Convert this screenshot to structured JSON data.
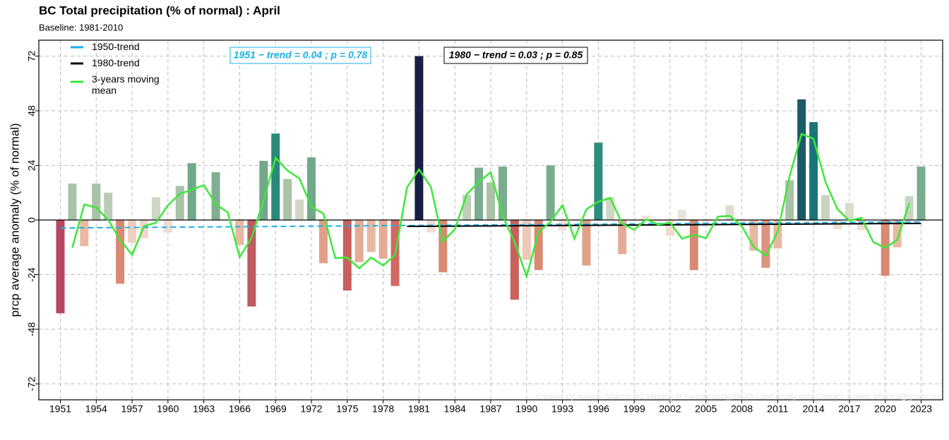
{
  "chart_data": {
    "type": "bar",
    "title": "BC Total precipitation (% of normal) : April",
    "subtitle": "Baseline: 1981-2010",
    "ylabel": "prcp average anomaly (% of normal)",
    "x": [
      1951,
      1952,
      1953,
      1954,
      1955,
      1956,
      1957,
      1958,
      1959,
      1960,
      1961,
      1962,
      1963,
      1964,
      1965,
      1966,
      1967,
      1968,
      1969,
      1970,
      1971,
      1972,
      1973,
      1974,
      1975,
      1976,
      1977,
      1978,
      1979,
      1980,
      1981,
      1982,
      1983,
      1984,
      1985,
      1986,
      1987,
      1988,
      1989,
      1990,
      1991,
      1992,
      1993,
      1994,
      1995,
      1996,
      1997,
      1998,
      1999,
      2000,
      2001,
      2002,
      2003,
      2004,
      2005,
      2006,
      2007,
      2008,
      2009,
      2010,
      2011,
      2012,
      2013,
      2014,
      2015,
      2016,
      2017,
      2018,
      2019,
      2020,
      2021,
      2022,
      2023
    ],
    "values": [
      -41,
      16,
      -11.5,
      16,
      12,
      -28,
      -10,
      -8,
      10,
      -5.5,
      15,
      25,
      0,
      21,
      0,
      -11,
      -38,
      26,
      38,
      18,
      9,
      27.5,
      -19,
      0,
      -31,
      -18.5,
      -14,
      -17,
      -29,
      0,
      72,
      -5.5,
      -23,
      0,
      11,
      23,
      16.5,
      23.5,
      -35,
      -17.5,
      -22,
      24,
      -4.5,
      0,
      -20,
      34,
      10,
      -15,
      0,
      2,
      -1,
      -7,
      4.5,
      -22,
      -2,
      0,
      6.5,
      -1,
      -13.5,
      -21,
      -12.5,
      17.5,
      53,
      43,
      11,
      -4,
      7.5,
      -4.5,
      0,
      -24.5,
      -12,
      10.5,
      23.5
    ],
    "colors": [
      "#b8465e",
      "#a9c2a8",
      "#e8b8a2",
      "#a9c2a8",
      "#b9cbb5",
      "#d98a72",
      "#efd0c0",
      "#efd6c8",
      "#d0d6c4",
      "#f0dcd0",
      "#a9c2a8",
      "#72a88a",
      "#e0e0d8",
      "#80ae90",
      "#e0e0d8",
      "#e8b8a2",
      "#c05a60",
      "#72a88a",
      "#2a8a78",
      "#a9c2a8",
      "#d0d6c4",
      "#72a88a",
      "#e0a088",
      "#e0e0d8",
      "#c8605c",
      "#e4ac96",
      "#e8b8a2",
      "#e4ac96",
      "#d06a62",
      "#e0e0d8",
      "#172044",
      "#f0dcd0",
      "#d98a72",
      "#e0e0d8",
      "#c0cfb9",
      "#7aac8e",
      "#a9c2a8",
      "#7aac8e",
      "#c8605c",
      "#ecc8b8",
      "#d98a72",
      "#7aac8e",
      "#f0dcd0",
      "#e0e0d8",
      "#e0a088",
      "#2e8c7c",
      "#d0d6c4",
      "#e4ac96",
      "#e0e0d8",
      "#ece6dc",
      "#f3e4dc",
      "#f0dcd0",
      "#e8e4da",
      "#d98a72",
      "#f3e4dc",
      "#e0e0d8",
      "#e0ddd0",
      "#f3e4dc",
      "#e8b8a2",
      "#dc9480",
      "#e8b8a2",
      "#a9c2a8",
      "#1c5a66",
      "#1a7478",
      "#c8d4c0",
      "#f0dcd0",
      "#dcdcc8",
      "#f0dcd0",
      "#e0e0d8",
      "#d98a72",
      "#e8b8a2",
      "#c8d4c0",
      "#7aac8e"
    ],
    "series": [
      {
        "name": "1950-trend",
        "color": "#1ab0e8",
        "dashed": true,
        "x": [
          1951,
          2023
        ],
        "values": [
          -3.5,
          -0.8
        ]
      },
      {
        "name": "1980-trend",
        "color": "#000000",
        "dashed": false,
        "x": [
          1980,
          2023
        ],
        "values": [
          -2.8,
          -1.5
        ]
      },
      {
        "name": "3-years moving mean",
        "color": "#3de83a",
        "dashed": false,
        "values": [
          null,
          -12.2,
          6.8,
          5.5,
          0,
          -8.7,
          -15.3,
          -2.7,
          -1.2,
          6.5,
          11.5,
          13.3,
          15.3,
          7,
          3.3,
          -16.3,
          -7.7,
          8.7,
          27.3,
          21.7,
          18.2,
          5.8,
          2.8,
          -16.7,
          -16.5,
          -21.2,
          -16.5,
          -20,
          -15.3,
          14.3,
          22.2,
          14.5,
          -9.5,
          -4,
          11.3,
          16.8,
          21,
          1.7,
          -9.7,
          -24.8,
          -5.2,
          -0.8,
          6.5,
          -8.2,
          4.7,
          8,
          9.7,
          -1.7,
          -4.3,
          0.3,
          -2,
          -1.2,
          -8.2,
          -6.5,
          -8,
          1.5,
          1.8,
          -2.7,
          -11.8,
          -15.7,
          -5.3,
          19.3,
          37.8,
          35.7,
          16.7,
          4.8,
          -0.3,
          1,
          -9.7,
          -12.2,
          -8.7,
          7.3,
          null
        ]
      }
    ],
    "annotations": [
      {
        "text": "1951 − trend = 0.04 ; p = 0.78",
        "color": "#1ab0e8"
      },
      {
        "text": "1980 − trend = 0.03 ; p = 0.85",
        "color": "#000000"
      }
    ],
    "credit": "Created by: Aseem Sharma BC Ministry of Forests using ERA5-Land hourly data Contact: Aseem.Sharma@gov.bc.ca",
    "xlim": [
      1949.2,
      2024.8
    ],
    "ylim": [
      -79,
      79
    ],
    "xticks": [
      1951,
      1954,
      1957,
      1960,
      1963,
      1966,
      1969,
      1972,
      1975,
      1978,
      1981,
      1984,
      1987,
      1990,
      1993,
      1996,
      1999,
      2002,
      2005,
      2008,
      2011,
      2014,
      2017,
      2020,
      2023
    ],
    "yticks": [
      -72,
      -48,
      -24,
      0,
      24,
      48,
      72
    ],
    "grid": true
  }
}
